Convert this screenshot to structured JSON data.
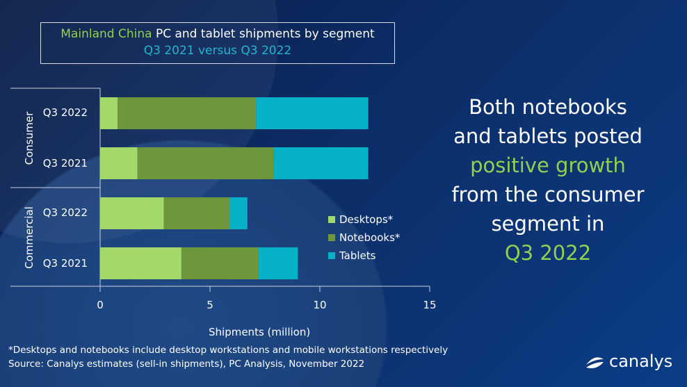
{
  "title": {
    "line1_highlight": "Mainland China",
    "line1_rest": " PC and tablet shipments by segment",
    "line2": "Q3 2021 versus Q3 2022"
  },
  "chart_data": {
    "type": "bar",
    "orientation": "horizontal",
    "stacked": true,
    "groups": [
      "Consumer",
      "Commercial"
    ],
    "categories": [
      {
        "group": "Consumer",
        "label": "Q3 2022"
      },
      {
        "group": "Consumer",
        "label": "Q3 2021"
      },
      {
        "group": "Commercial",
        "label": "Q3 2022"
      },
      {
        "group": "Commercial",
        "label": "Q3 2021"
      }
    ],
    "series": [
      {
        "name": "Desktops*",
        "color": "#a3d86b",
        "values": [
          0.8,
          1.7,
          2.9,
          3.7
        ]
      },
      {
        "name": "Notebooks*",
        "color": "#6e963a",
        "values": [
          6.3,
          6.2,
          3.0,
          3.5
        ]
      },
      {
        "name": "Tablets",
        "color": "#05b1c6",
        "values": [
          5.1,
          4.3,
          0.8,
          1.8
        ]
      }
    ],
    "xlabel": "Shipments (million)",
    "xlim": [
      0,
      15
    ],
    "xticks": [
      "0",
      "5",
      "10",
      "15"
    ],
    "legend": "right"
  },
  "message": {
    "l1": "Both notebooks",
    "l2": "and tablets posted",
    "l3": "positive growth",
    "l4": "from the consumer",
    "l5": "segment in",
    "l6": "Q3 2022"
  },
  "footnote": "*Desktops and notebooks include desktop workstations and mobile workstations respectively",
  "source": "Source: Canalys estimates (sell-in shipments), PC Analysis, November 2022",
  "logo": "canalys"
}
